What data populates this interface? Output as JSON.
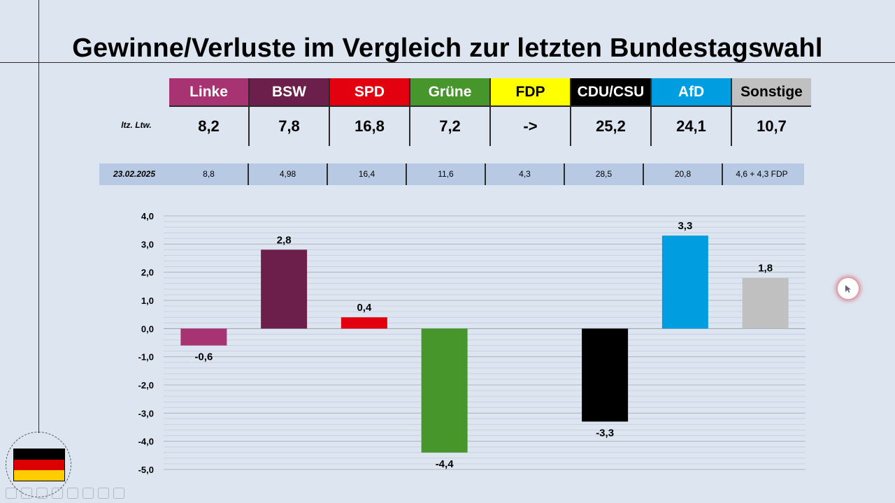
{
  "title": "Gewinne/Verluste im Vergleich zur letzten Bundestagswahl",
  "table": {
    "parties": [
      {
        "name": "Linke",
        "bg": "#a83373",
        "fg": "#ffffff"
      },
      {
        "name": "BSW",
        "bg": "#6b1f4a",
        "fg": "#ffffff"
      },
      {
        "name": "SPD",
        "bg": "#e3000f",
        "fg": "#ffffff"
      },
      {
        "name": "Grüne",
        "bg": "#46962b",
        "fg": "#ffffff"
      },
      {
        "name": "FDP",
        "bg": "#ffff00",
        "fg": "#000000"
      },
      {
        "name": "CDU/CSU",
        "bg": "#000000",
        "fg": "#ffffff"
      },
      {
        "name": "AfD",
        "bg": "#009ee0",
        "fg": "#ffffff"
      },
      {
        "name": "Sonstige",
        "bg": "#c0c0c0",
        "fg": "#000000"
      }
    ],
    "row1_label": "ltz. Ltw.",
    "row1_values": [
      "8,2",
      "7,8",
      "16,8",
      "7,2",
      "->",
      "25,2",
      "24,1",
      "10,7"
    ],
    "row2_label": "23.02.2025",
    "row2_values": [
      "8,8",
      "4,98",
      "16,4",
      "11,6",
      "4,3",
      "28,5",
      "20,8",
      "4,6 + 4,3 FDP"
    ]
  },
  "chart_data": {
    "type": "bar",
    "categories": [
      "Linke",
      "BSW",
      "SPD",
      "Grüne",
      "FDP",
      "CDU/CSU",
      "AfD",
      "Sonstige"
    ],
    "values": [
      -0.6,
      2.8,
      0.4,
      -4.4,
      null,
      -3.3,
      3.3,
      1.8
    ],
    "labels": [
      "-0,6",
      "2,8",
      "0,4",
      "-4,4",
      "",
      "-3,3",
      "3,3",
      "1,8"
    ],
    "colors": [
      "#a83373",
      "#6b1f4a",
      "#e3000f",
      "#46962b",
      "#ffff00",
      "#000000",
      "#009ee0",
      "#c0c0c0"
    ],
    "ylim": [
      -5,
      4
    ],
    "yticks": [
      "4,0",
      "3,0",
      "2,0",
      "1,0",
      "0,0",
      "-1,0",
      "-2,0",
      "-3,0",
      "-4,0",
      "-5,0"
    ],
    "grid": true
  },
  "icons": {
    "flag": "germany-flag-icon",
    "cursor": "mouse-pointer-icon"
  },
  "flag_colors": [
    "#000000",
    "#dd0000",
    "#ffcc00"
  ]
}
